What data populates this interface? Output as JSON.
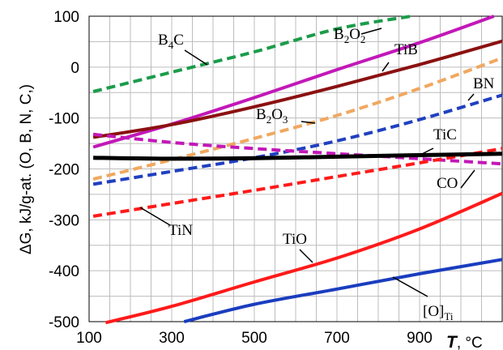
{
  "chart_data": {
    "type": "line",
    "title": "",
    "xlabel_main": "T",
    "xlabel_unit": ", °C",
    "ylabel": "ΔG, kJ/g-at. (O, B, N, C,)",
    "xlim": [
      100,
      1100
    ],
    "ylim": [
      -500,
      100
    ],
    "xticks": [
      100,
      300,
      500,
      700,
      900
    ],
    "yticks": [
      100,
      0,
      -100,
      -200,
      -300,
      -400,
      -500
    ],
    "grid": true,
    "series": [
      {
        "name": "B4C",
        "label_main": "B",
        "label_sub": "4",
        "label_tail": "C",
        "color": "#1a9c4a",
        "style": "dashed",
        "x": [
          110,
          300,
          500,
          700,
          880
        ],
        "y": [
          -48,
          -10,
          30,
          75,
          100
        ]
      },
      {
        "name": "B2O2",
        "label_main": "B",
        "label_sub": "2",
        "label_tail": "O",
        "label_sub2": "2",
        "color": "#c218b8",
        "style": "solid",
        "x": [
          110,
          300,
          500,
          700,
          900,
          1080
        ],
        "y": [
          -157,
          -112,
          -60,
          -5,
          48,
          100
        ]
      },
      {
        "name": "TiB",
        "label_main": "TiB",
        "color": "#8b1111",
        "style": "solid",
        "x": [
          110,
          300,
          500,
          700,
          900,
          1100
        ],
        "y": [
          -138,
          -113,
          -78,
          -38,
          5,
          51
        ]
      },
      {
        "name": "B2O3",
        "label_main": "B",
        "label_sub": "2",
        "label_tail": "O",
        "label_sub2": "3",
        "color": "#f0a860",
        "style": "dashed",
        "x": [
          110,
          300,
          500,
          700,
          900,
          1100
        ],
        "y": [
          -220,
          -182,
          -140,
          -95,
          -42,
          18
        ]
      },
      {
        "name": "BN",
        "label_main": "BN",
        "color": "#2040c0",
        "style": "dashed",
        "x": [
          110,
          300,
          500,
          700,
          900,
          1100
        ],
        "y": [
          -230,
          -205,
          -178,
          -145,
          -103,
          -55
        ]
      },
      {
        "name": "TiC",
        "label_main": "TiC",
        "color": "#000000",
        "style": "solid",
        "x": [
          110,
          300,
          500,
          700,
          900,
          1100
        ],
        "y": [
          -178,
          -180,
          -179,
          -176,
          -173,
          -170
        ]
      },
      {
        "name": "CO",
        "label_main": "CO",
        "color": "#c218b8",
        "style": "dashed",
        "x": [
          110,
          300,
          500,
          700,
          900,
          1100
        ],
        "y": [
          -132,
          -148,
          -160,
          -170,
          -180,
          -190
        ]
      },
      {
        "name": "TiN",
        "label_main": "TiN",
        "color": "#ff1a1a",
        "style": "dashed",
        "x": [
          110,
          300,
          500,
          700,
          900,
          1100
        ],
        "y": [
          -293,
          -268,
          -242,
          -215,
          -188,
          -160
        ]
      },
      {
        "name": "TiO",
        "label_main": "TiO",
        "color": "#ff1a1a",
        "style": "solid",
        "x": [
          140,
          300,
          500,
          700,
          900,
          1100
        ],
        "y": [
          -502,
          -470,
          -422,
          -375,
          -318,
          -248
        ]
      },
      {
        "name": "[O]Ti",
        "label_main": "[O]",
        "label_sub": "Ti",
        "color": "#1a3dbf",
        "style": "solid",
        "x": [
          330,
          500,
          700,
          900,
          1100
        ],
        "y": [
          -500,
          -466,
          -436,
          -406,
          -378
        ]
      }
    ]
  },
  "label_positions": {
    "B4C": [
      195,
      55
    ],
    "B2O2": [
      412,
      48
    ],
    "TiB": [
      487,
      67
    ],
    "B2O3": [
      316,
      147
    ],
    "BN": [
      584,
      109
    ],
    "TiC": [
      535,
      172
    ],
    "CO": [
      539,
      232
    ],
    "TiN": [
      208,
      290
    ],
    "TiO": [
      349,
      301
    ],
    "[O]Ti": [
      522,
      390
    ]
  }
}
